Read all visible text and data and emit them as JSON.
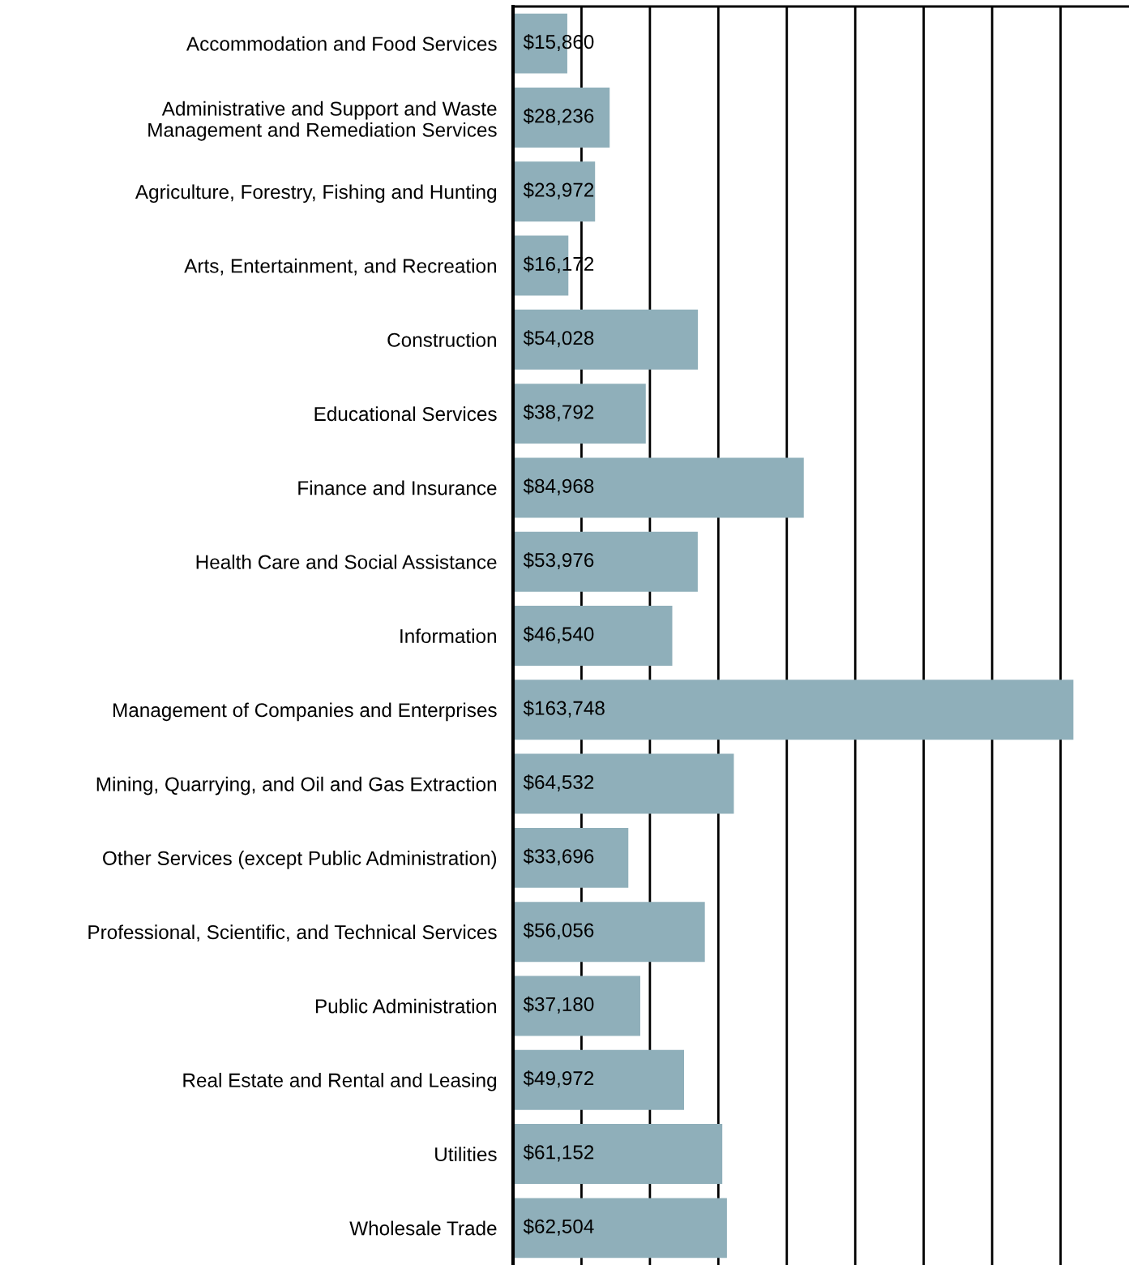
{
  "chart_data": {
    "type": "bar",
    "orientation": "horizontal",
    "categories": [
      "Accommodation and Food Services",
      "Administrative and Support and Waste\nManagement and Remediation Services",
      "Agriculture, Forestry, Fishing and Hunting",
      "Arts, Entertainment, and Recreation",
      "Construction",
      "Educational Services",
      "Finance and Insurance",
      "Health Care and Social Assistance",
      "Information",
      "Management of Companies and Enterprises",
      "Mining, Quarrying, and Oil and Gas Extraction",
      "Other Services (except Public Administration)",
      "Professional, Scientific, and Technical Services",
      "Public Administration",
      "Real Estate and Rental and Leasing",
      "Utilities",
      "Wholesale Trade"
    ],
    "values": [
      15860,
      28236,
      23972,
      16172,
      54028,
      38792,
      84968,
      53976,
      46540,
      163748,
      64532,
      33696,
      56056,
      37180,
      49972,
      61152,
      62504
    ],
    "value_labels": [
      "$15,860",
      "$28,236",
      "$23,972",
      "$16,172",
      "$54,028",
      "$38,792",
      "$84,968",
      "$53,976",
      "$46,540",
      "$163,748",
      "$64,532",
      "$33,696",
      "$56,056",
      "$37,180",
      "$49,972",
      "$61,152",
      "$62,504"
    ],
    "color": "#8fafba",
    "xlim": [
      0,
      180000
    ],
    "xticks": [
      {
        "value": 0,
        "label": null
      },
      {
        "value": 20000,
        "label": null
      },
      {
        "value": 40000,
        "label": null
      },
      {
        "value": 60000,
        "label": null
      },
      {
        "value": 80000,
        "label": null
      },
      {
        "value": 100000,
        "label": null
      },
      {
        "value": 120000,
        "label": null
      },
      {
        "value": 140000,
        "label": null
      },
      {
        "value": 160000,
        "label": null
      }
    ],
    "grid": "x",
    "tick_labels": "y"
  }
}
